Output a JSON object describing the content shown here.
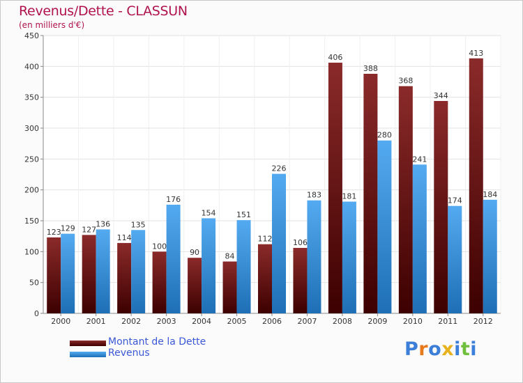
{
  "title": "Revenus/Dette - CLASSUN",
  "subtitle": "(en milliers d'€)",
  "brand": "Proxiti",
  "chart_data": {
    "type": "bar",
    "title": "Revenus/Dette - CLASSUN",
    "subtitle": "(en milliers d'€)",
    "categories": [
      "2000",
      "2001",
      "2002",
      "2003",
      "2004",
      "2005",
      "2006",
      "2007",
      "2008",
      "2009",
      "2010",
      "2011",
      "2012"
    ],
    "series": [
      {
        "name": "Montant de la Dette",
        "color": "#7a1a1a",
        "values": [
          123,
          127,
          114,
          100,
          90,
          84,
          112,
          106,
          406,
          388,
          368,
          344,
          413
        ]
      },
      {
        "name": "Revenus",
        "color": "#3d9be6",
        "values": [
          129,
          136,
          135,
          176,
          154,
          151,
          226,
          183,
          181,
          280,
          241,
          174,
          184
        ]
      }
    ],
    "yticks": [
      0,
      50,
      100,
      150,
      200,
      250,
      300,
      350,
      400,
      450
    ],
    "ylim": [
      0,
      450
    ],
    "grid": true,
    "legend_position": "bottom-left"
  }
}
